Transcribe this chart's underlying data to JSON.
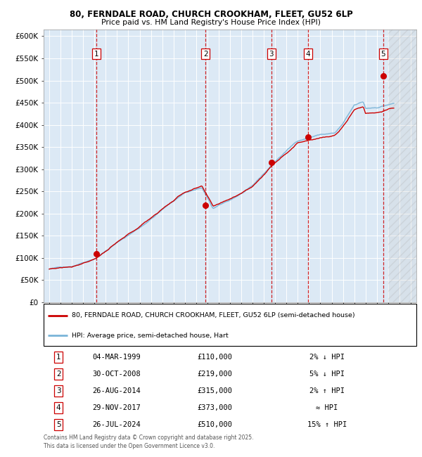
{
  "title_line1": "80, FERNDALE ROAD, CHURCH CROOKHAM, FLEET, GU52 6LP",
  "title_line2": "Price paid vs. HM Land Registry's House Price Index (HPI)",
  "legend_label1": "80, FERNDALE ROAD, CHURCH CROOKHAM, FLEET, GU52 6LP (semi-detached house)",
  "legend_label2": "HPI: Average price, semi-detached house, Hart",
  "hpi_color": "#7ab4d8",
  "price_color": "#cc0000",
  "dot_color": "#cc0000",
  "vline_color": "#cc0000",
  "bg_color": "#dce9f5",
  "grid_color": "#ffffff",
  "yticks": [
    0,
    50000,
    100000,
    150000,
    200000,
    250000,
    300000,
    350000,
    400000,
    450000,
    500000,
    550000,
    600000
  ],
  "ylim": [
    0,
    615000
  ],
  "xlim_start": 1994.5,
  "xlim_end": 2027.5,
  "transactions": [
    {
      "num": 1,
      "date": "04-MAR-1999",
      "year": 1999.17,
      "price": 110000
    },
    {
      "num": 2,
      "date": "30-OCT-2008",
      "year": 2008.83,
      "price": 219000
    },
    {
      "num": 3,
      "date": "26-AUG-2014",
      "year": 2014.65,
      "price": 315000
    },
    {
      "num": 4,
      "date": "29-NOV-2017",
      "year": 2017.92,
      "price": 373000
    },
    {
      "num": 5,
      "date": "26-JUL-2024",
      "year": 2024.57,
      "price": 510000
    }
  ],
  "table_rows": [
    {
      "num": "1",
      "date": "04-MAR-1999",
      "price": "£110,000",
      "hpi": "2% ↓ HPI"
    },
    {
      "num": "2",
      "date": "30-OCT-2008",
      "price": "£219,000",
      "hpi": "5% ↓ HPI"
    },
    {
      "num": "3",
      "date": "26-AUG-2014",
      "price": "£315,000",
      "hpi": "2% ↑ HPI"
    },
    {
      "num": "4",
      "date": "29-NOV-2017",
      "price": "£373,000",
      "hpi": "≈ HPI"
    },
    {
      "num": "5",
      "date": "26-JUL-2024",
      "price": "£510,000",
      "hpi": "15% ↑ HPI"
    }
  ],
  "footer_line1": "Contains HM Land Registry data © Crown copyright and database right 2025.",
  "footer_line2": "This data is licensed under the Open Government Licence v3.0."
}
